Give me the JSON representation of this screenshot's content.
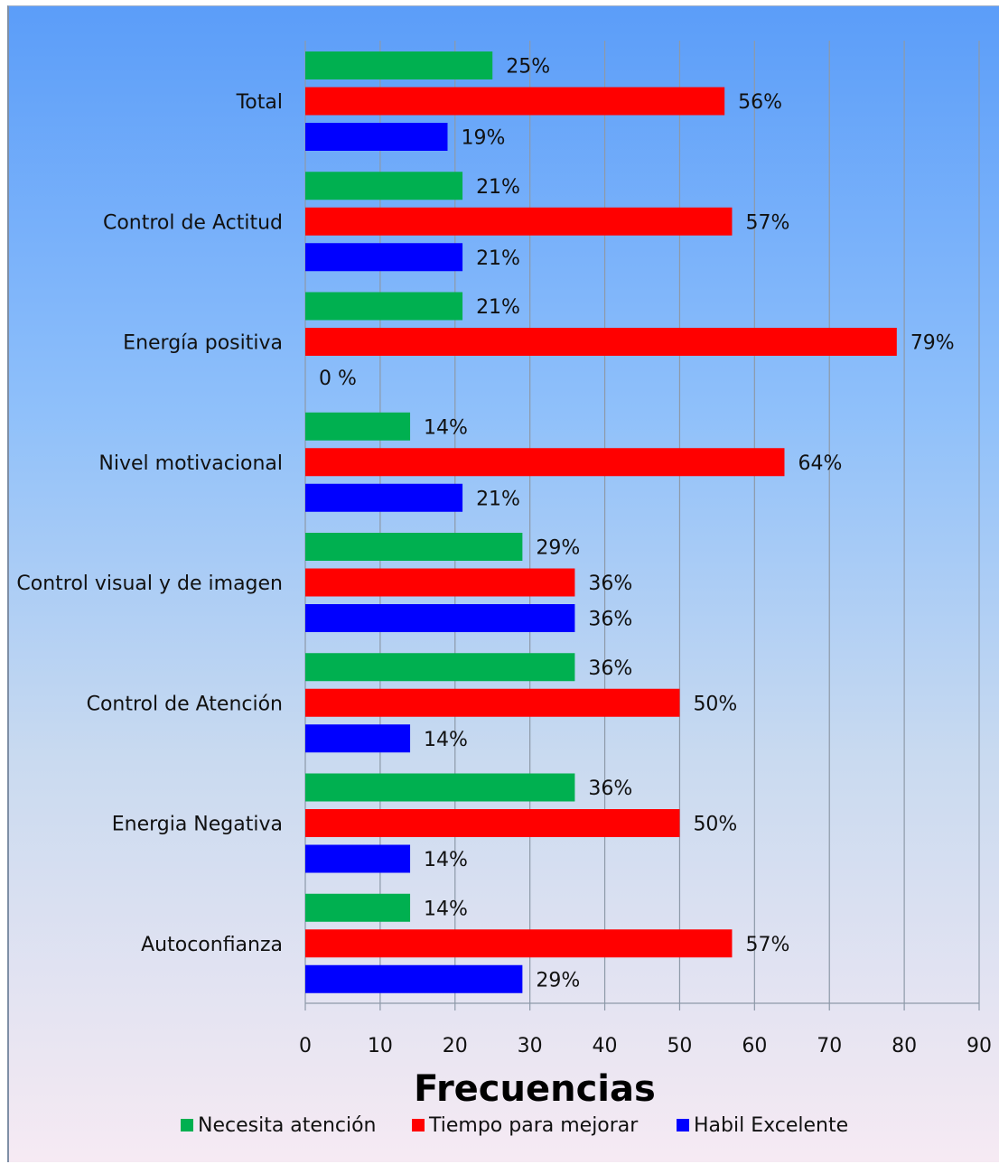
{
  "chart_data": {
    "type": "bar",
    "orientation": "horizontal",
    "categories": [
      "Total",
      "Control de Actitud",
      "Energía positiva",
      "Nivel motivacional",
      "Control visual y de imagen",
      "Control de Atención",
      "Energia Negativa",
      "Autoconfianza"
    ],
    "series": [
      {
        "name": "Necesita atención",
        "color": "#00b050",
        "values": [
          25,
          21,
          21,
          14,
          29,
          36,
          36,
          14
        ],
        "labels": [
          "25%",
          "21%",
          "21%",
          "14%",
          "29%",
          "36%",
          "36%",
          "14%"
        ]
      },
      {
        "name": "Tiempo para mejorar",
        "color": "#ff0000",
        "values": [
          56,
          57,
          79,
          64,
          36,
          50,
          50,
          57
        ],
        "labels": [
          "56%",
          "57%",
          "79%",
          "64%",
          "36%",
          "50%",
          "50%",
          "57%"
        ]
      },
      {
        "name": "Habil Excelente",
        "color": "#0000ff",
        "values": [
          19,
          21,
          0,
          21,
          36,
          14,
          14,
          29
        ],
        "labels": [
          "19%",
          "21%",
          "0 %",
          "21%",
          "36%",
          "14%",
          "14%",
          "29%"
        ]
      }
    ],
    "xlabel": "Frecuencias",
    "xlim": [
      0,
      90
    ],
    "xticks": [
      0,
      10,
      20,
      30,
      40,
      50,
      60,
      70,
      80,
      90
    ],
    "xtick_labels": [
      "0",
      "10",
      "20",
      "30",
      "40",
      "50",
      "60",
      "70",
      "80",
      "90"
    ],
    "grid": true,
    "legend_position": "bottom"
  }
}
